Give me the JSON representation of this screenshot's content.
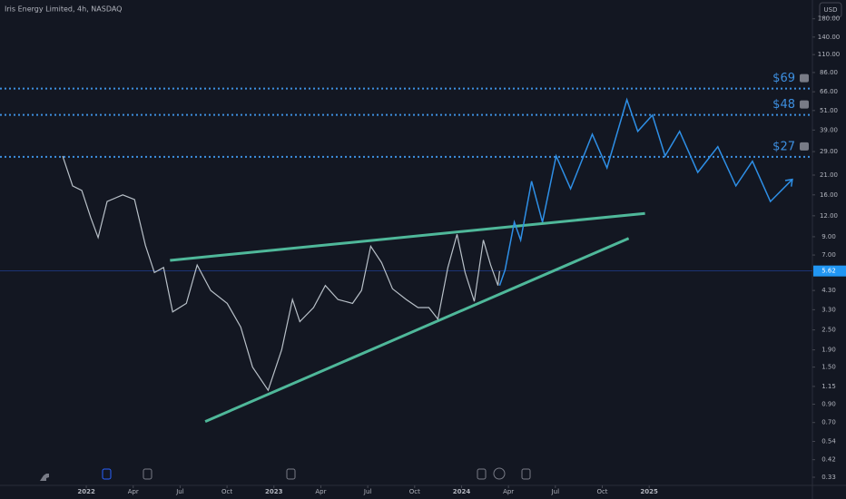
{
  "chart_data": {
    "type": "line",
    "title": "Iris Energy Limited, 4h, NASDAQ",
    "currency": "USD",
    "log_scale": true,
    "xlim": [
      2021.54,
      2025.87
    ],
    "ylim": [
      0.295,
      233
    ],
    "xticks": [
      2022,
      {
        "value": 2022.25,
        "label": "Apr"
      },
      {
        "value": 2022.5,
        "label": "Jul"
      },
      {
        "value": 2022.75,
        "label": "Oct"
      },
      2023,
      {
        "value": 2023.25,
        "label": "Apr"
      },
      {
        "value": 2023.5,
        "label": "Jul"
      },
      {
        "value": 2023.75,
        "label": "Oct"
      },
      2024,
      {
        "value": 2024.25,
        "label": "Apr"
      },
      {
        "value": 2024.5,
        "label": "Jul"
      },
      {
        "value": 2024.75,
        "label": "Oct"
      },
      2025
    ],
    "yticks": [
      {
        "value": 180,
        "label": "180.00"
      },
      {
        "value": 140,
        "label": "140.00"
      },
      {
        "value": 110,
        "label": "110.00"
      },
      {
        "value": 86,
        "label": "86.00"
      },
      {
        "value": 66,
        "label": "66.00"
      },
      {
        "value": 51,
        "label": "51.00"
      },
      {
        "value": 39,
        "label": "39.00"
      },
      {
        "value": 29,
        "label": "29.00"
      },
      {
        "value": 21,
        "label": "21.00"
      },
      {
        "value": 16,
        "label": "16.00"
      },
      {
        "value": 12,
        "label": "12.00"
      },
      {
        "value": 9,
        "label": "9.00"
      },
      {
        "value": 7,
        "label": "7.00"
      },
      {
        "value": 4.3,
        "label": "4.30"
      },
      {
        "value": 3.3,
        "label": "3.30"
      },
      {
        "value": 2.5,
        "label": "2.50"
      },
      {
        "value": 1.9,
        "label": "1.90"
      },
      {
        "value": 1.5,
        "label": "1.50"
      },
      {
        "value": 1.15,
        "label": "1.15"
      },
      {
        "value": 0.9,
        "label": "0.90"
      },
      {
        "value": 0.7,
        "label": "0.70"
      },
      {
        "value": 0.54,
        "label": "0.54"
      },
      {
        "value": 0.42,
        "label": "0.42"
      },
      {
        "value": 0.33,
        "label": "0.33"
      }
    ],
    "last_price": 5.62,
    "price": {
      "color": "#b8c0c8",
      "x": [
        2021.874,
        2021.927,
        2021.976,
        2022.024,
        2022.063,
        2022.111,
        2022.194,
        2022.257,
        2022.315,
        2022.363,
        2022.412,
        2022.46,
        2022.533,
        2022.591,
        2022.663,
        2022.751,
        2022.823,
        2022.886,
        2022.969,
        2023.041,
        2023.099,
        2023.138,
        2023.211,
        2023.274,
        2023.341,
        2023.419,
        2023.467,
        2023.516,
        2023.574,
        2023.632,
        2023.705,
        2023.768,
        2023.826,
        2023.874,
        2023.927,
        2023.976,
        2024.019,
        2024.068,
        2024.116,
        2024.155,
        2024.194,
        2024.203
      ],
      "values": [
        27.3,
        18.1,
        17.0,
        11.7,
        8.9,
        14.6,
        16.0,
        15.0,
        8.0,
        5.5,
        5.9,
        3.2,
        3.6,
        6.1,
        4.3,
        3.6,
        2.6,
        1.5,
        1.09,
        1.9,
        3.8,
        2.8,
        3.4,
        4.6,
        3.8,
        3.6,
        4.3,
        7.9,
        6.3,
        4.4,
        3.8,
        3.4,
        3.4,
        2.9,
        5.9,
        9.3,
        5.5,
        3.7,
        8.6,
        6.1,
        4.6,
        5.62
      ]
    },
    "projection": {
      "color": "#2e8fe6",
      "x": [
        2024.203,
        2024.232,
        2024.281,
        2024.315,
        2024.373,
        2024.431,
        2024.504,
        2024.581,
        2024.697,
        2024.775,
        2024.881,
        2024.939,
        2025.017,
        2025.085,
        2025.162,
        2025.259,
        2025.366,
        2025.462,
        2025.55,
        2025.646,
        2025.763
      ],
      "values": [
        4.6,
        5.7,
        11.0,
        8.6,
        19.3,
        11.0,
        27.3,
        17.4,
        36.8,
        23.2,
        59.2,
        38.3,
        47.9,
        27.3,
        38.3,
        21.8,
        31.0,
        18.1,
        25.4,
        14.6,
        19.8
      ]
    },
    "trendlines": {
      "color": "#4fb89a",
      "lines": [
        {
          "x": [
            2022.446,
            2024.978
          ],
          "values": [
            6.5,
            12.4
          ]
        },
        {
          "x": [
            2022.634,
            2024.891
          ],
          "values": [
            0.71,
            8.8
          ]
        }
      ]
    },
    "levels": {
      "color": "#3d8fe0",
      "items": [
        {
          "value": 69,
          "label": "$69"
        },
        {
          "value": 48,
          "label": "$48"
        },
        {
          "value": 27,
          "label": "$27"
        }
      ]
    }
  }
}
